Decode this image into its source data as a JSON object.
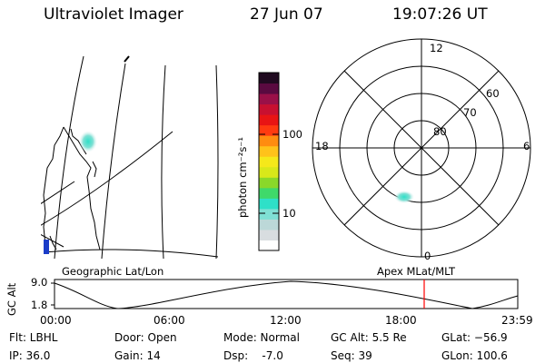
{
  "header": {
    "instrument": "Ultraviolet Imager",
    "date": "27 Jun 07",
    "time": "19:07:26 UT"
  },
  "colorbar": {
    "label": "photon cm⁻²s⁻¹",
    "ticks": [
      "100",
      "10"
    ],
    "colors": [
      "#ffffff",
      "#d8dde0",
      "#bcd8d8",
      "#7fe0d4",
      "#2ee0c8",
      "#3fd96a",
      "#8ad82a",
      "#d8e81a",
      "#f5e81a",
      "#ffc21a",
      "#ff8c10",
      "#ff3a10",
      "#e81414",
      "#c81030",
      "#9a1048",
      "#5a0a40",
      "#200a20"
    ]
  },
  "polar_plot": {
    "lat_labels": [
      "80",
      "70",
      "60"
    ],
    "mlt_labels": {
      "top": "12",
      "left": "18",
      "right": "6",
      "bottom": "0"
    }
  },
  "map_panels": {
    "left_label": "Geographic Lat/Lon",
    "right_label": "Apex MLat/MLT"
  },
  "timeline": {
    "ylabel": "GC Alt",
    "y_ticks": [
      "9.0",
      "1.8"
    ],
    "x_ticks": [
      "00:00",
      "06:00",
      "12:00",
      "18:00",
      "23:59"
    ],
    "current_time_marker_color": "#ff0000"
  },
  "info": {
    "filter": "Flt: LBHL",
    "ip": "IP: 36.0",
    "door": "Door: Open",
    "gain": "Gain: 14",
    "mode": "Mode: Normal",
    "dsp": "Dsp:    -7.0",
    "gc_alt": "GC Alt: 5.5 Re",
    "seq": "Seq: 39",
    "glat": "GLat: −56.9",
    "glon": "GLon: 100.6"
  }
}
